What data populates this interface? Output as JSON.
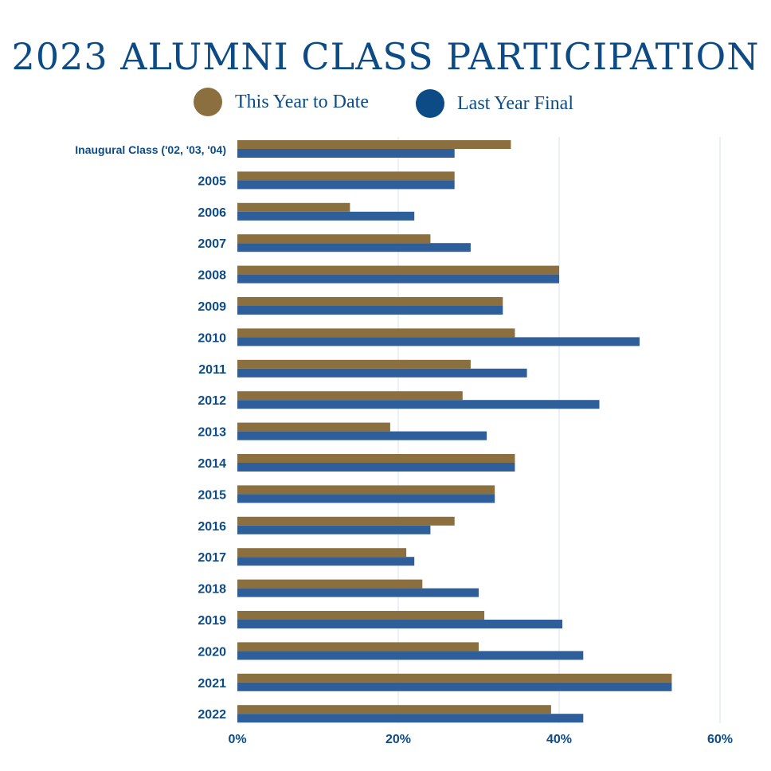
{
  "title": "2023 ALUMNI CLASS PARTICIPATION",
  "colors": {
    "this_year": "#8b6f3e",
    "last_year": "#2f5f9b",
    "text": "#0d4b86",
    "grid": "#d4e1ec"
  },
  "legend": [
    {
      "label": "This Year to Date",
      "color": "#8b6f3e"
    },
    {
      "label": "Last Year Final",
      "color": "#0d4b86"
    }
  ],
  "chart_data": {
    "type": "bar",
    "orientation": "horizontal",
    "title": "2023 ALUMNI CLASS PARTICIPATION",
    "xlabel": "",
    "ylabel": "",
    "xlim": [
      0,
      60
    ],
    "x_ticks": [
      0,
      20,
      40,
      60
    ],
    "x_tick_labels": [
      "0%",
      "20%",
      "40%",
      "60%"
    ],
    "grid": "vertical",
    "legend_position": "top-center",
    "categories": [
      "Inaugural Class ('02, '03, '04)",
      "2005",
      "2006",
      "2007",
      "2008",
      "2009",
      "2010",
      "2011",
      "2012",
      "2013",
      "2014",
      "2015",
      "2016",
      "2017",
      "2018",
      "2019",
      "2020",
      "2021",
      "2022"
    ],
    "series": [
      {
        "name": "This Year to Date",
        "values": [
          34,
          27,
          14,
          24,
          40,
          33,
          34.5,
          29,
          28,
          19,
          34.5,
          32,
          27,
          21,
          23,
          30.7,
          30,
          54,
          39
        ]
      },
      {
        "name": "Last Year Final",
        "values": [
          27,
          27,
          22,
          29,
          40,
          33,
          50,
          36,
          45,
          31,
          34.5,
          32,
          24,
          22,
          30,
          40.4,
          43,
          54,
          43
        ]
      }
    ]
  }
}
